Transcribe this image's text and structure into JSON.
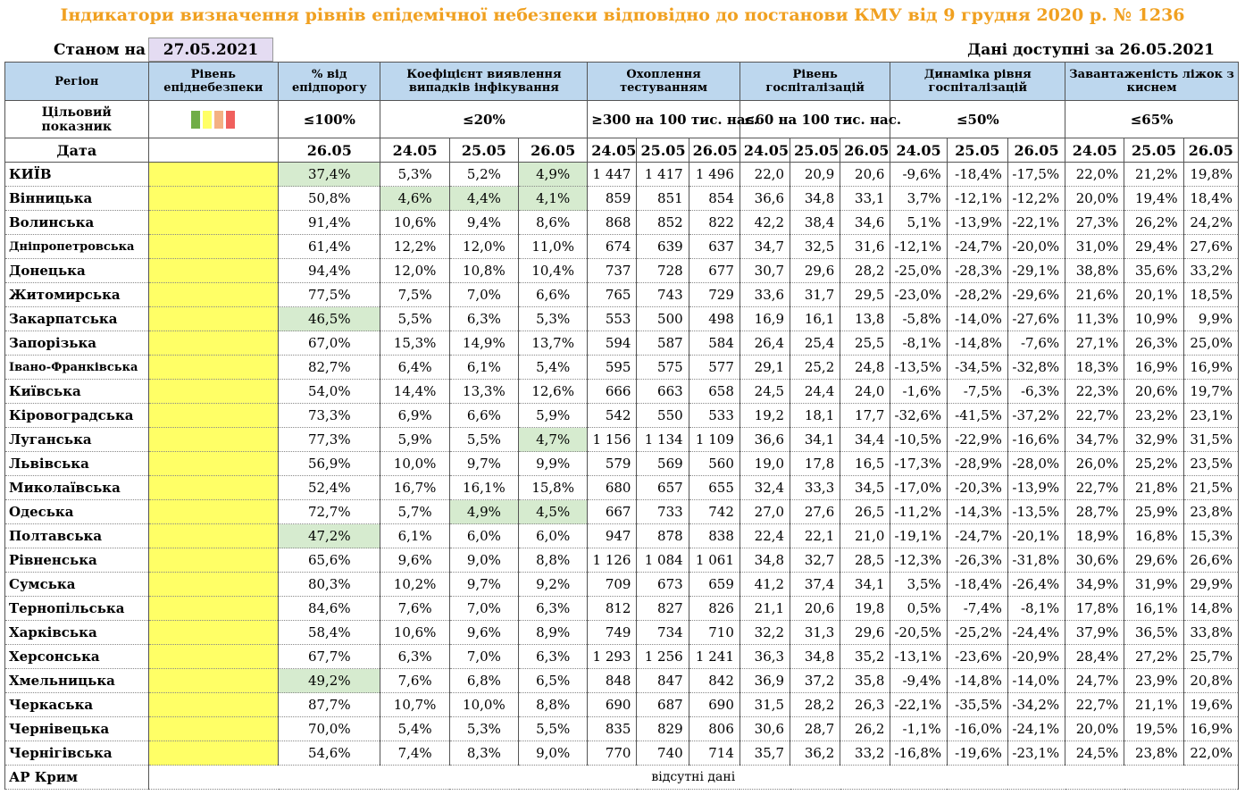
{
  "title": "Індикатори визначення рівнів епідемічної небезпеки відповідно до постанови КМУ від 9 грудня 2020 р. № 1236",
  "state_label": "Станом на",
  "state_date": "27.05.2021",
  "available_label": "Дані доступні за 26.05.2021",
  "headers": {
    "region": "Регіон",
    "level": "Рівень епіднебезпеки",
    "pct_threshold": "% від епідпорогу",
    "detection": "Коефіцієнт виявлення випадків інфікування",
    "testing": "Охоплення тестуванням",
    "hosp": "Рівень госпіталізацій",
    "hosp_dyn": "Динаміка рівня госпіталізацій",
    "oxygen": "Завантаженість ліжок з киснем"
  },
  "target_row": {
    "label": "Цільовий показник",
    "pct": "≤100%",
    "detection": "≤20%",
    "testing": "≥300 на 100 тис. нас.",
    "hosp": "≤60 на 100 тис. нас.",
    "hosp_dyn": "≤50%",
    "oxygen": "≤65%"
  },
  "legend_colors": [
    "#70ad47",
    "#ffff66",
    "#f4b183",
    "#f0605d"
  ],
  "date_row": {
    "label": "Дата",
    "pct": "26.05",
    "dates": [
      "24.05",
      "25.05",
      "26.05"
    ]
  },
  "rows": [
    {
      "region": "КИЇВ",
      "pct": "37,4%",
      "det": [
        "5,3%",
        "5,2%",
        "4,9%"
      ],
      "test": [
        "1 447",
        "1 417",
        "1 496"
      ],
      "hosp": [
        "22,0",
        "20,9",
        "20,6"
      ],
      "dyn": [
        "-9,6%",
        "-18,4%",
        "-17,5%"
      ],
      "oxy": [
        "22,0%",
        "21,2%",
        "19,8%"
      ]
    },
    {
      "region": "Вінницька",
      "pct": "50,8%",
      "det": [
        "4,6%",
        "4,4%",
        "4,1%"
      ],
      "test": [
        "859",
        "851",
        "854"
      ],
      "hosp": [
        "36,6",
        "34,8",
        "33,1"
      ],
      "dyn": [
        "3,7%",
        "-12,1%",
        "-12,2%"
      ],
      "oxy": [
        "20,0%",
        "19,4%",
        "18,4%"
      ]
    },
    {
      "region": "Волинська",
      "pct": "91,4%",
      "det": [
        "10,6%",
        "9,4%",
        "8,6%"
      ],
      "test": [
        "868",
        "852",
        "822"
      ],
      "hosp": [
        "42,2",
        "38,4",
        "34,6"
      ],
      "dyn": [
        "5,1%",
        "-13,9%",
        "-22,1%"
      ],
      "oxy": [
        "27,3%",
        "26,2%",
        "24,2%"
      ]
    },
    {
      "region": "Дніпропетровська",
      "pct": "61,4%",
      "det": [
        "12,2%",
        "12,0%",
        "11,0%"
      ],
      "test": [
        "674",
        "639",
        "637"
      ],
      "hosp": [
        "34,7",
        "32,5",
        "31,6"
      ],
      "dyn": [
        "-12,1%",
        "-24,7%",
        "-20,0%"
      ],
      "oxy": [
        "31,0%",
        "29,4%",
        "27,6%"
      ]
    },
    {
      "region": "Донецька",
      "pct": "94,4%",
      "det": [
        "12,0%",
        "10,8%",
        "10,4%"
      ],
      "test": [
        "737",
        "728",
        "677"
      ],
      "hosp": [
        "30,7",
        "29,6",
        "28,2"
      ],
      "dyn": [
        "-25,0%",
        "-28,3%",
        "-29,1%"
      ],
      "oxy": [
        "38,8%",
        "35,6%",
        "33,2%"
      ]
    },
    {
      "region": "Житомирська",
      "pct": "77,5%",
      "det": [
        "7,5%",
        "7,0%",
        "6,6%"
      ],
      "test": [
        "765",
        "743",
        "729"
      ],
      "hosp": [
        "33,6",
        "31,7",
        "29,5"
      ],
      "dyn": [
        "-23,0%",
        "-28,2%",
        "-29,6%"
      ],
      "oxy": [
        "21,6%",
        "20,1%",
        "18,5%"
      ]
    },
    {
      "region": "Закарпатська",
      "pct": "46,5%",
      "det": [
        "5,5%",
        "6,3%",
        "5,3%"
      ],
      "test": [
        "553",
        "500",
        "498"
      ],
      "hosp": [
        "16,9",
        "16,1",
        "13,8"
      ],
      "dyn": [
        "-5,8%",
        "-14,0%",
        "-27,6%"
      ],
      "oxy": [
        "11,3%",
        "10,9%",
        "9,9%"
      ]
    },
    {
      "region": "Запорізька",
      "pct": "67,0%",
      "det": [
        "15,3%",
        "14,9%",
        "13,7%"
      ],
      "test": [
        "594",
        "587",
        "584"
      ],
      "hosp": [
        "26,4",
        "25,4",
        "25,5"
      ],
      "dyn": [
        "-8,1%",
        "-14,8%",
        "-7,6%"
      ],
      "oxy": [
        "27,1%",
        "26,3%",
        "25,0%"
      ]
    },
    {
      "region": "Івано-Франківська",
      "pct": "82,7%",
      "det": [
        "6,4%",
        "6,1%",
        "5,4%"
      ],
      "test": [
        "595",
        "575",
        "577"
      ],
      "hosp": [
        "29,1",
        "25,2",
        "24,8"
      ],
      "dyn": [
        "-13,5%",
        "-34,5%",
        "-32,8%"
      ],
      "oxy": [
        "18,3%",
        "16,9%",
        "16,9%"
      ]
    },
    {
      "region": "Київська",
      "pct": "54,0%",
      "det": [
        "14,4%",
        "13,3%",
        "12,6%"
      ],
      "test": [
        "666",
        "663",
        "658"
      ],
      "hosp": [
        "24,5",
        "24,4",
        "24,0"
      ],
      "dyn": [
        "-1,6%",
        "-7,5%",
        "-6,3%"
      ],
      "oxy": [
        "22,3%",
        "20,6%",
        "19,7%"
      ]
    },
    {
      "region": "Кіровоградська",
      "pct": "73,3%",
      "det": [
        "6,9%",
        "6,6%",
        "5,9%"
      ],
      "test": [
        "542",
        "550",
        "533"
      ],
      "hosp": [
        "19,2",
        "18,1",
        "17,7"
      ],
      "dyn": [
        "-32,6%",
        "-41,5%",
        "-37,2%"
      ],
      "oxy": [
        "22,7%",
        "23,2%",
        "23,1%"
      ]
    },
    {
      "region": "Луганська",
      "pct": "77,3%",
      "det": [
        "5,9%",
        "5,5%",
        "4,7%"
      ],
      "test": [
        "1 156",
        "1 134",
        "1 109"
      ],
      "hosp": [
        "36,6",
        "34,1",
        "34,4"
      ],
      "dyn": [
        "-10,5%",
        "-22,9%",
        "-16,6%"
      ],
      "oxy": [
        "34,7%",
        "32,9%",
        "31,5%"
      ]
    },
    {
      "region": "Львівська",
      "pct": "56,9%",
      "det": [
        "10,0%",
        "9,7%",
        "9,9%"
      ],
      "test": [
        "579",
        "569",
        "560"
      ],
      "hosp": [
        "19,0",
        "17,8",
        "16,5"
      ],
      "dyn": [
        "-17,3%",
        "-28,9%",
        "-28,0%"
      ],
      "oxy": [
        "26,0%",
        "25,2%",
        "23,5%"
      ]
    },
    {
      "region": "Миколаївська",
      "pct": "52,4%",
      "det": [
        "16,7%",
        "16,1%",
        "15,8%"
      ],
      "test": [
        "680",
        "657",
        "655"
      ],
      "hosp": [
        "32,4",
        "33,3",
        "34,5"
      ],
      "dyn": [
        "-17,0%",
        "-20,3%",
        "-13,9%"
      ],
      "oxy": [
        "22,7%",
        "21,8%",
        "21,5%"
      ]
    },
    {
      "region": "Одеська",
      "pct": "72,7%",
      "det": [
        "5,7%",
        "4,9%",
        "4,5%"
      ],
      "test": [
        "667",
        "733",
        "742"
      ],
      "hosp": [
        "27,0",
        "27,6",
        "26,5"
      ],
      "dyn": [
        "-11,2%",
        "-14,3%",
        "-13,5%"
      ],
      "oxy": [
        "28,7%",
        "25,9%",
        "23,8%"
      ]
    },
    {
      "region": "Полтавська",
      "pct": "47,2%",
      "det": [
        "6,1%",
        "6,0%",
        "6,0%"
      ],
      "test": [
        "947",
        "878",
        "838"
      ],
      "hosp": [
        "22,4",
        "22,1",
        "21,0"
      ],
      "dyn": [
        "-19,1%",
        "-24,7%",
        "-20,1%"
      ],
      "oxy": [
        "18,9%",
        "16,8%",
        "15,3%"
      ]
    },
    {
      "region": "Рівненська",
      "pct": "65,6%",
      "det": [
        "9,6%",
        "9,0%",
        "8,8%"
      ],
      "test": [
        "1 126",
        "1 084",
        "1 061"
      ],
      "hosp": [
        "34,8",
        "32,7",
        "28,5"
      ],
      "dyn": [
        "-12,3%",
        "-26,3%",
        "-31,8%"
      ],
      "oxy": [
        "30,6%",
        "29,6%",
        "26,6%"
      ]
    },
    {
      "region": "Сумська",
      "pct": "80,3%",
      "det": [
        "10,2%",
        "9,7%",
        "9,2%"
      ],
      "test": [
        "709",
        "673",
        "659"
      ],
      "hosp": [
        "41,2",
        "37,4",
        "34,1"
      ],
      "dyn": [
        "3,5%",
        "-18,4%",
        "-26,4%"
      ],
      "oxy": [
        "34,9%",
        "31,9%",
        "29,9%"
      ]
    },
    {
      "region": "Тернопільська",
      "pct": "84,6%",
      "det": [
        "7,6%",
        "7,0%",
        "6,3%"
      ],
      "test": [
        "812",
        "827",
        "826"
      ],
      "hosp": [
        "21,1",
        "20,6",
        "19,8"
      ],
      "dyn": [
        "0,5%",
        "-7,4%",
        "-8,1%"
      ],
      "oxy": [
        "17,8%",
        "16,1%",
        "14,8%"
      ]
    },
    {
      "region": "Харківська",
      "pct": "58,4%",
      "det": [
        "10,6%",
        "9,6%",
        "8,9%"
      ],
      "test": [
        "749",
        "734",
        "710"
      ],
      "hosp": [
        "32,2",
        "31,3",
        "29,6"
      ],
      "dyn": [
        "-20,5%",
        "-25,2%",
        "-24,4%"
      ],
      "oxy": [
        "37,9%",
        "36,5%",
        "33,8%"
      ]
    },
    {
      "region": "Херсонська",
      "pct": "67,7%",
      "det": [
        "6,3%",
        "7,0%",
        "6,3%"
      ],
      "test": [
        "1 293",
        "1 256",
        "1 241"
      ],
      "hosp": [
        "36,3",
        "34,8",
        "35,2"
      ],
      "dyn": [
        "-13,1%",
        "-23,6%",
        "-20,9%"
      ],
      "oxy": [
        "28,4%",
        "27,2%",
        "25,7%"
      ]
    },
    {
      "region": "Хмельницька",
      "pct": "49,2%",
      "det": [
        "7,6%",
        "6,8%",
        "6,5%"
      ],
      "test": [
        "848",
        "847",
        "842"
      ],
      "hosp": [
        "36,9",
        "37,2",
        "35,8"
      ],
      "dyn": [
        "-9,4%",
        "-14,8%",
        "-14,0%"
      ],
      "oxy": [
        "24,7%",
        "23,9%",
        "20,8%"
      ]
    },
    {
      "region": "Черкаська",
      "pct": "87,7%",
      "det": [
        "10,7%",
        "10,0%",
        "8,8%"
      ],
      "test": [
        "690",
        "687",
        "690"
      ],
      "hosp": [
        "31,5",
        "28,2",
        "26,3"
      ],
      "dyn": [
        "-22,1%",
        "-35,5%",
        "-34,2%"
      ],
      "oxy": [
        "22,7%",
        "21,1%",
        "19,6%"
      ]
    },
    {
      "region": "Чернівецька",
      "pct": "70,0%",
      "det": [
        "5,4%",
        "5,3%",
        "5,5%"
      ],
      "test": [
        "835",
        "829",
        "806"
      ],
      "hosp": [
        "30,6",
        "28,7",
        "26,2"
      ],
      "dyn": [
        "-1,1%",
        "-16,0%",
        "-24,1%"
      ],
      "oxy": [
        "20,0%",
        "19,5%",
        "16,9%"
      ]
    },
    {
      "region": "Чернігівська",
      "pct": "54,6%",
      "det": [
        "7,4%",
        "8,3%",
        "9,0%"
      ],
      "test": [
        "770",
        "740",
        "714"
      ],
      "hosp": [
        "35,7",
        "36,2",
        "33,2"
      ],
      "dyn": [
        "-16,8%",
        "-19,6%",
        "-23,1%"
      ],
      "oxy": [
        "24,5%",
        "23,8%",
        "22,0%"
      ]
    }
  ],
  "crimea": {
    "region": "АР Крим",
    "message": "відсутні дані"
  },
  "highlights": {
    "pct": [
      "КИЇВ",
      "Закарпатська",
      "Полтавська",
      "Хмельницька"
    ],
    "det": {
      "КИЇВ": [
        2
      ],
      "Вінницька": [
        0,
        1,
        2
      ],
      "Луганська": [
        2
      ],
      "Одеська": [
        1,
        2
      ]
    }
  }
}
